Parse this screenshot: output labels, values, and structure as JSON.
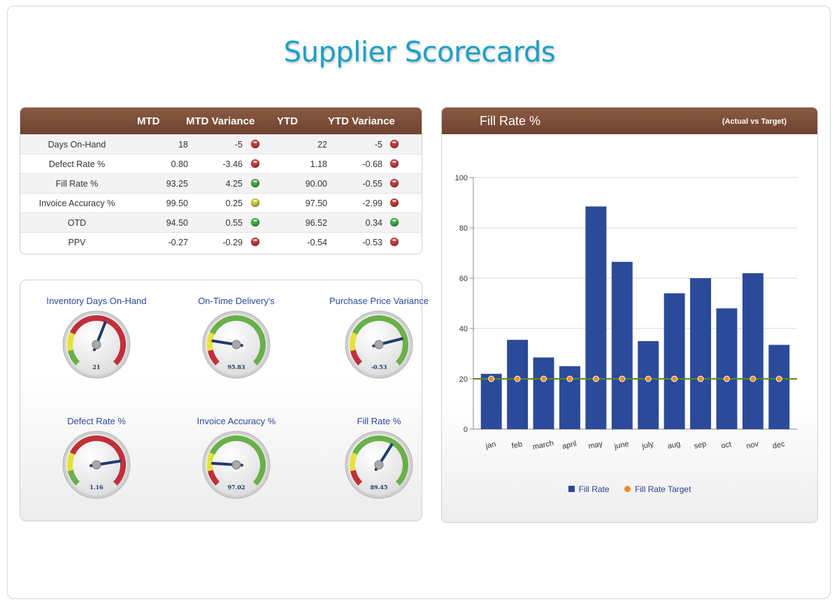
{
  "page": {
    "title": "Supplier Scorecards"
  },
  "table": {
    "headers": [
      "MTD",
      "MTD Variance",
      "YTD",
      "YTD Variance"
    ],
    "rows": [
      {
        "metric": "Days On-Hand",
        "mtd": "18",
        "mtd_var": "-5",
        "mtd_status": "red",
        "ytd": "22",
        "ytd_var": "-5",
        "ytd_status": "red"
      },
      {
        "metric": "Defect Rate %",
        "mtd": "0.80",
        "mtd_var": "-3.46",
        "mtd_status": "red",
        "ytd": "1.18",
        "ytd_var": "-0.68",
        "ytd_status": "red"
      },
      {
        "metric": "Fill Rate %",
        "mtd": "93.25",
        "mtd_var": "4.25",
        "mtd_status": "green",
        "ytd": "90.00",
        "ytd_var": "-0.55",
        "ytd_status": "red"
      },
      {
        "metric": "Invoice Accuracy %",
        "mtd": "99.50",
        "mtd_var": "0.25",
        "mtd_status": "yellow",
        "ytd": "97.50",
        "ytd_var": "-2.99",
        "ytd_status": "red"
      },
      {
        "metric": "OTD",
        "mtd": "94.50",
        "mtd_var": "0.55",
        "mtd_status": "green",
        "ytd": "96.52",
        "ytd_var": "0.34",
        "ytd_status": "green"
      },
      {
        "metric": "PPV",
        "mtd": "-0.27",
        "mtd_var": "-0.29",
        "mtd_status": "red",
        "ytd": "-0.54",
        "ytd_var": "-0.53",
        "ytd_status": "red"
      }
    ]
  },
  "gauges": [
    {
      "title": "Inventory Days On-Hand",
      "value": "21",
      "level": 0.58,
      "bands": [
        "green",
        "yellow",
        "red"
      ]
    },
    {
      "title": "On-Time Delivery's",
      "value": "95.83",
      "level": 0.2,
      "bands": [
        "red",
        "yellow",
        "green"
      ]
    },
    {
      "title": "Purchase Price Variance",
      "value": "-0.53",
      "level": 0.78,
      "bands": [
        "red",
        "yellow",
        "green"
      ]
    },
    {
      "title": "Defect Rate %",
      "value": "1.16",
      "level": 0.8,
      "bands": [
        "green",
        "yellow",
        "red"
      ]
    },
    {
      "title": "Invoice Accuracy %",
      "value": "97.02",
      "level": 0.18,
      "bands": [
        "red",
        "yellow",
        "green"
      ]
    },
    {
      "title": "Fill Rate %",
      "value": "89.45",
      "level": 0.62,
      "bands": [
        "red",
        "yellow",
        "green"
      ]
    }
  ],
  "colors": {
    "header_brown": "#7a4a33",
    "bar_blue": "#2c4a9a",
    "target_orange": "#f08a24",
    "target_line": "#5a8a1a",
    "gauge_red": "#c0303a",
    "gauge_yellow": "#e6e23a",
    "gauge_green": "#6ab04a"
  },
  "chart_data": {
    "type": "bar",
    "title": "Fill Rate %",
    "subtitle": "(Actual vs Target)",
    "categories": [
      "jan",
      "feb",
      "march",
      "april",
      "may",
      "june",
      "july",
      "aug",
      "sep",
      "oct",
      "nov",
      "dec"
    ],
    "series": [
      {
        "name": "Fill Rate",
        "type": "bar",
        "values": [
          22,
          35.5,
          28.5,
          25,
          88.5,
          66.5,
          35,
          54,
          60,
          48,
          62,
          33.5
        ]
      },
      {
        "name": "Fill Rate Target",
        "type": "line",
        "values": [
          20,
          20,
          20,
          20,
          20,
          20,
          20,
          20,
          20,
          20,
          20,
          20
        ]
      }
    ],
    "yticks": [
      0,
      20,
      40,
      60,
      80,
      100
    ],
    "ylim": [
      0,
      100
    ],
    "grid": true,
    "legend": "bottom"
  }
}
